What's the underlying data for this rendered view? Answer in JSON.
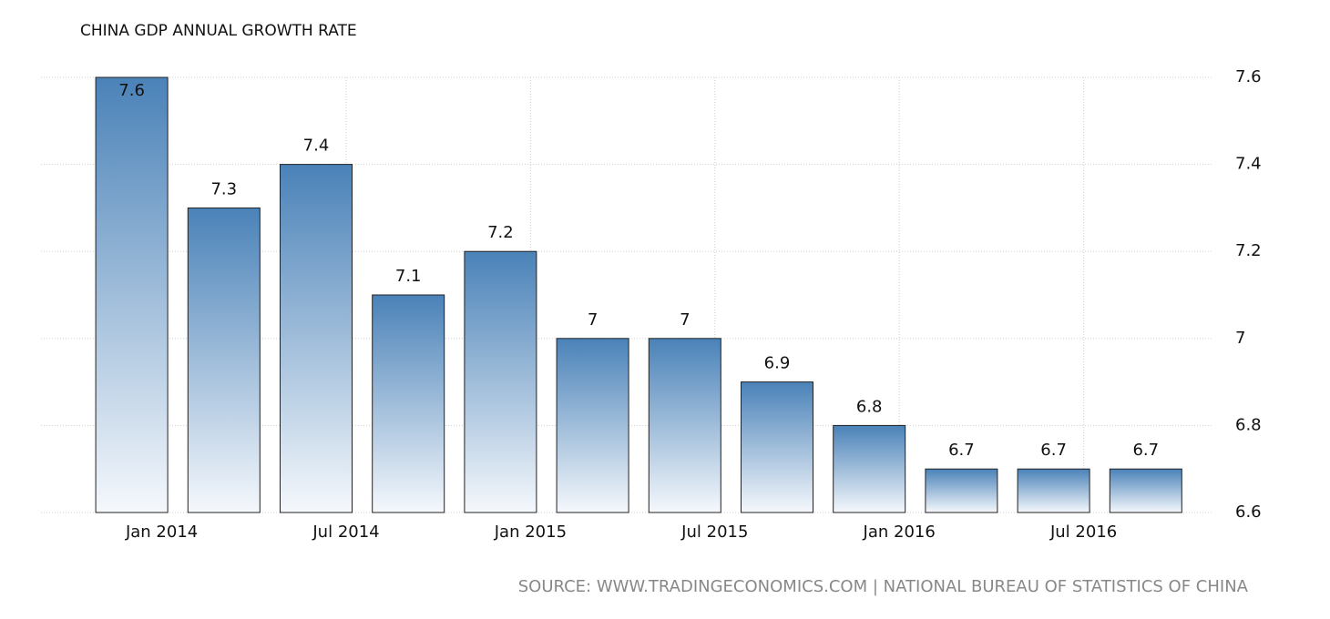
{
  "chart_data": {
    "type": "bar",
    "title": "CHINA GDP ANNUAL GROWTH RATE",
    "source": "SOURCE: WWW.TRADINGECONOMICS.COM | NATIONAL BUREAU OF STATISTICS OF CHINA",
    "categories": [
      "Jan 2014",
      null,
      "Jul 2014",
      null,
      "Jan 2015",
      null,
      "Jul 2015",
      null,
      "Jan 2016",
      null,
      "Jul 2016",
      null
    ],
    "values": [
      7.6,
      7.3,
      7.4,
      7.1,
      7.2,
      7,
      7,
      6.9,
      6.8,
      6.7,
      6.7,
      6.7
    ],
    "color": "#4a82b8",
    "ylim": [
      6.6,
      7.6
    ],
    "yticks": [
      6.6,
      6.8,
      7,
      7.2,
      7.4,
      7.6
    ],
    "grid": true
  }
}
